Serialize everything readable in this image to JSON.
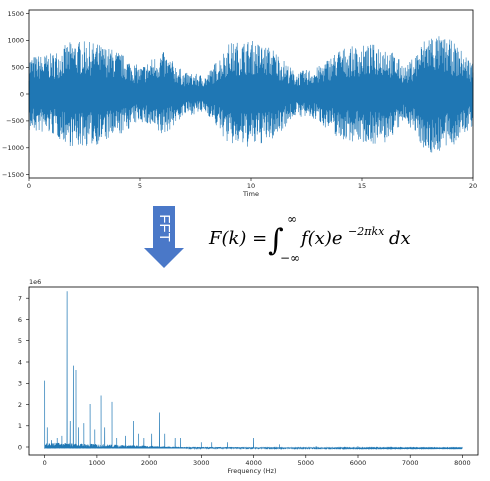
{
  "arrow": {
    "label": "FFT",
    "color": "#4a78c8"
  },
  "formula": {
    "lhs": "F(k) = ",
    "integral": "∫",
    "upper": "∞",
    "lower": "−∞",
    "integrand_f": "f(x)e",
    "exponent": "−2πkx",
    "differential": "dx"
  },
  "chart_data": [
    {
      "type": "line",
      "color": "#1f77b4",
      "xlabel": "Time",
      "ylabel": "",
      "xlim": [
        0,
        20
      ],
      "ylim": [
        -1550,
        1550
      ],
      "x_ticks": [
        "0",
        "5",
        "10",
        "15",
        "20"
      ],
      "y_ticks": [
        "1500",
        "1000",
        "500",
        "0",
        "−500",
        "−1000",
        "−1500"
      ],
      "envelope": {
        "t": [
          0,
          1,
          2,
          3,
          4,
          5,
          6,
          7,
          8,
          9,
          10,
          11,
          12,
          13,
          14,
          15,
          16,
          17,
          18,
          19,
          20
        ],
        "amplitude": [
          700,
          750,
          1000,
          950,
          800,
          500,
          800,
          400,
          350,
          950,
          1000,
          850,
          400,
          500,
          850,
          900,
          950,
          500,
          1150,
          1000,
          600
        ]
      }
    },
    {
      "type": "line",
      "color": "#1f77b4",
      "xlabel": "Frequency (Hz)",
      "ylabel": "",
      "y_scale_label": "1e6",
      "xlim": [
        -300,
        8300
      ],
      "ylim": [
        -0.3,
        7.6
      ],
      "x_ticks": [
        "0",
        "1000",
        "2000",
        "3000",
        "4000",
        "5000",
        "6000",
        "7000",
        "8000"
      ],
      "y_ticks": [
        "7",
        "6",
        "5",
        "4",
        "3",
        "2",
        "1",
        "0"
      ],
      "peaks": [
        {
          "f": 0,
          "v": 3.2
        },
        {
          "f": 50,
          "v": 1.0
        },
        {
          "f": 130,
          "v": 0.4
        },
        {
          "f": 240,
          "v": 0.5
        },
        {
          "f": 330,
          "v": 0.6
        },
        {
          "f": 430,
          "v": 7.4
        },
        {
          "f": 490,
          "v": 1.3
        },
        {
          "f": 550,
          "v": 3.9
        },
        {
          "f": 600,
          "v": 3.7
        },
        {
          "f": 650,
          "v": 1.0
        },
        {
          "f": 750,
          "v": 1.2
        },
        {
          "f": 870,
          "v": 2.1
        },
        {
          "f": 960,
          "v": 0.9
        },
        {
          "f": 1080,
          "v": 2.5
        },
        {
          "f": 1150,
          "v": 1.0
        },
        {
          "f": 1290,
          "v": 2.2
        },
        {
          "f": 1380,
          "v": 0.5
        },
        {
          "f": 1550,
          "v": 0.6
        },
        {
          "f": 1700,
          "v": 1.3
        },
        {
          "f": 1800,
          "v": 0.7
        },
        {
          "f": 1900,
          "v": 0.5
        },
        {
          "f": 2050,
          "v": 0.7
        },
        {
          "f": 2200,
          "v": 1.7
        },
        {
          "f": 2300,
          "v": 0.7
        },
        {
          "f": 2500,
          "v": 0.5
        },
        {
          "f": 2600,
          "v": 0.5
        },
        {
          "f": 3000,
          "v": 0.3
        },
        {
          "f": 3200,
          "v": 0.3
        },
        {
          "f": 3500,
          "v": 0.3
        },
        {
          "f": 4000,
          "v": 0.5
        },
        {
          "f": 4500,
          "v": 0.2
        },
        {
          "f": 5200,
          "v": 0.12
        },
        {
          "f": 6000,
          "v": 0.12
        },
        {
          "f": 7000,
          "v": 0.08
        }
      ]
    }
  ]
}
